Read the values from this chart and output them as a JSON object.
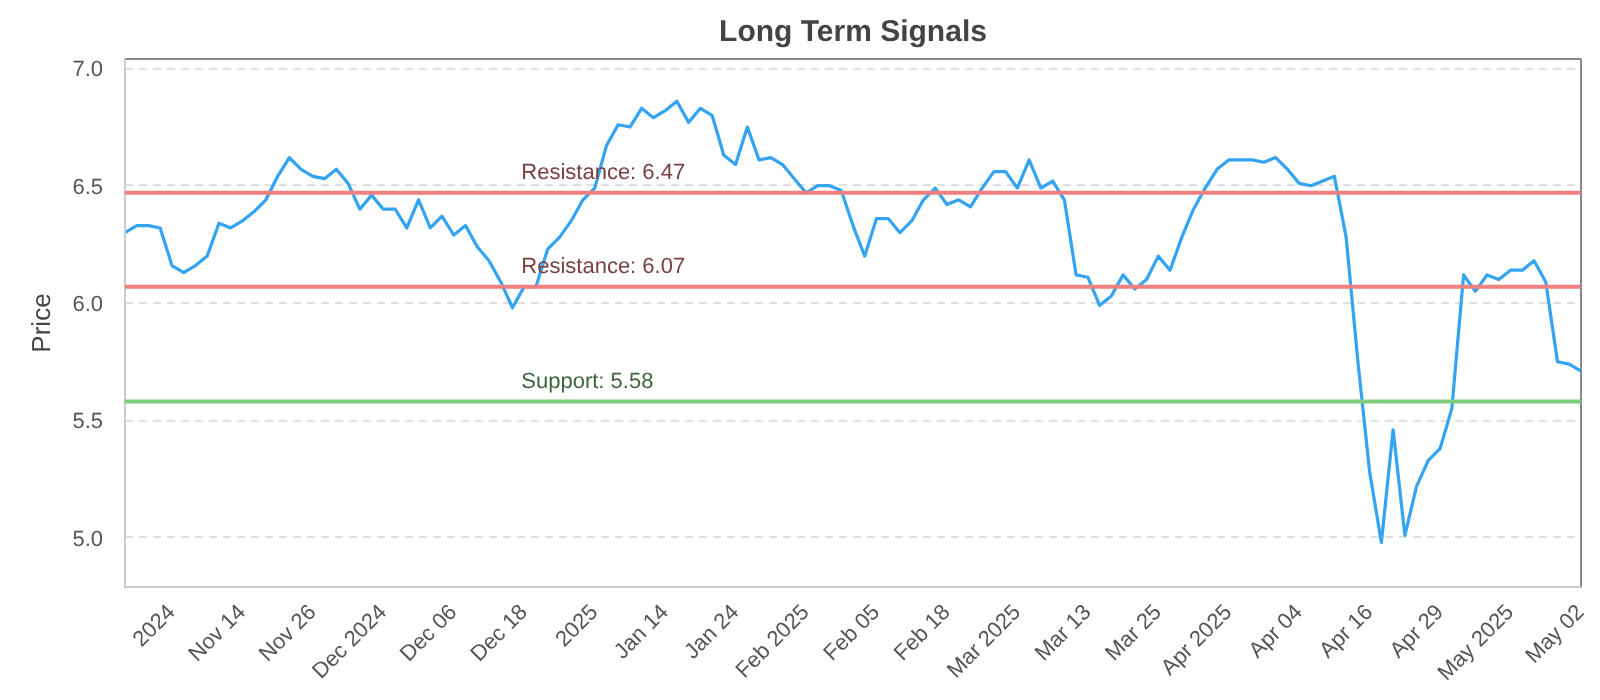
{
  "chart_data": {
    "type": "line",
    "title": "Long Term Signals",
    "ylabel": "Price",
    "categories": [
      null,
      null,
      null,
      null,
      "2024",
      null,
      null,
      null,
      null,
      null,
      "Nov 14",
      null,
      null,
      null,
      null,
      null,
      "Nov 26",
      null,
      null,
      null,
      null,
      null,
      "Dec 2024",
      null,
      null,
      null,
      null,
      null,
      "Dec 06",
      null,
      null,
      null,
      null,
      null,
      "Dec 18",
      null,
      null,
      null,
      null,
      null,
      "2025",
      null,
      null,
      null,
      null,
      null,
      "Jan 14",
      null,
      null,
      null,
      null,
      null,
      "Jan 24",
      null,
      null,
      null,
      null,
      null,
      "Feb 2025",
      null,
      null,
      null,
      null,
      null,
      "Feb 05",
      null,
      null,
      null,
      null,
      null,
      "Feb 18",
      null,
      null,
      null,
      null,
      null,
      "Mar 2025",
      null,
      null,
      null,
      null,
      null,
      "Mar 13",
      null,
      null,
      null,
      null,
      null,
      "Mar 25",
      null,
      null,
      null,
      null,
      null,
      "Apr 2025",
      null,
      null,
      null,
      null,
      null,
      "Apr 04",
      null,
      null,
      null,
      null,
      null,
      "Apr 16",
      null,
      null,
      null,
      null,
      null,
      "Apr 29",
      null,
      null,
      null,
      null,
      null,
      "May 2025",
      null,
      null,
      null,
      null,
      null,
      "May 02"
    ],
    "series": [
      {
        "color": "#33a3f4",
        "values": [
          6.3,
          6.33,
          6.33,
          6.32,
          6.16,
          6.13,
          6.16,
          6.2,
          6.34,
          6.32,
          6.35,
          6.39,
          6.44,
          6.54,
          6.62,
          6.57,
          6.54,
          6.53,
          6.57,
          6.51,
          6.4,
          6.46,
          6.4,
          6.4,
          6.32,
          6.44,
          6.32,
          6.37,
          6.29,
          6.33,
          6.24,
          6.18,
          6.09,
          5.98,
          6.07,
          6.07,
          6.23,
          6.28,
          6.35,
          6.44,
          6.49,
          6.67,
          6.76,
          6.75,
          6.83,
          6.79,
          6.82,
          6.86,
          6.77,
          6.83,
          6.8,
          6.63,
          6.59,
          6.75,
          6.61,
          6.62,
          6.59,
          6.53,
          6.47,
          6.5,
          6.5,
          6.48,
          6.33,
          6.2,
          6.36,
          6.36,
          6.3,
          6.35,
          6.44,
          6.49,
          6.42,
          6.44,
          6.41,
          6.49,
          6.56,
          6.56,
          6.49,
          6.61,
          6.49,
          6.52,
          6.44,
          6.12,
          6.11,
          5.99,
          6.03,
          6.12,
          6.06,
          6.1,
          6.2,
          6.14,
          6.28,
          6.4,
          6.49,
          6.57,
          6.61,
          6.61,
          6.61,
          6.6,
          6.62,
          6.57,
          6.51,
          6.5,
          6.52,
          6.54,
          6.28,
          5.75,
          5.28,
          4.98,
          5.46,
          5.01,
          5.22,
          5.33,
          5.38,
          5.55,
          6.12,
          6.05,
          6.12,
          6.1,
          6.14,
          6.14,
          6.18,
          6.09,
          5.75,
          5.74,
          5.71
        ]
      }
    ],
    "ylim": [
      4.79,
      7.04
    ],
    "yticks": [
      {
        "value": 5.0,
        "label": "5.0"
      },
      {
        "value": 5.5,
        "label": "5.5"
      },
      {
        "value": 6.0,
        "label": "6.0"
      },
      {
        "value": 6.5,
        "label": "6.5"
      },
      {
        "value": 7.0,
        "label": "7.0"
      }
    ],
    "grid": "y",
    "marker": "none",
    "line_style": "solid",
    "ref_lines": [
      {
        "axis": "y",
        "value": 6.47,
        "label": "Resistance: 6.47",
        "color": "#f08080"
      },
      {
        "axis": "y",
        "value": 6.07,
        "label": "Resistance: 6.07",
        "color": "#f08080"
      },
      {
        "axis": "y",
        "value": 5.58,
        "label": "Support: 5.58",
        "color": "#7ccc7c"
      }
    ]
  }
}
